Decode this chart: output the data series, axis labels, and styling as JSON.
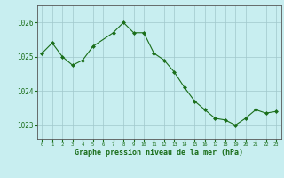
{
  "x": [
    0,
    1,
    2,
    3,
    4,
    5,
    7,
    8,
    9,
    10,
    11,
    12,
    13,
    14,
    15,
    16,
    17,
    18,
    19,
    20,
    21,
    22,
    23
  ],
  "y": [
    1025.1,
    1025.4,
    1025.0,
    1024.75,
    1024.9,
    1025.3,
    1025.7,
    1026.0,
    1025.7,
    1025.7,
    1025.1,
    1024.9,
    1024.55,
    1024.1,
    1023.7,
    1023.45,
    1023.2,
    1023.15,
    1023.0,
    1023.2,
    1023.45,
    1023.35,
    1023.4
  ],
  "bg_color": "#c8eef0",
  "line_color": "#1a6e1a",
  "marker_color": "#1a6e1a",
  "grid_color": "#a0c8cc",
  "axis_label_color": "#1a6e1a",
  "tick_color": "#1a6e1a",
  "yticks": [
    1023,
    1024,
    1025,
    1026
  ],
  "ylim": [
    1022.6,
    1026.5
  ],
  "xlim": [
    -0.5,
    23.5
  ],
  "xlabel": "Graphe pression niveau de la mer (hPa)",
  "border_color": "#555555"
}
